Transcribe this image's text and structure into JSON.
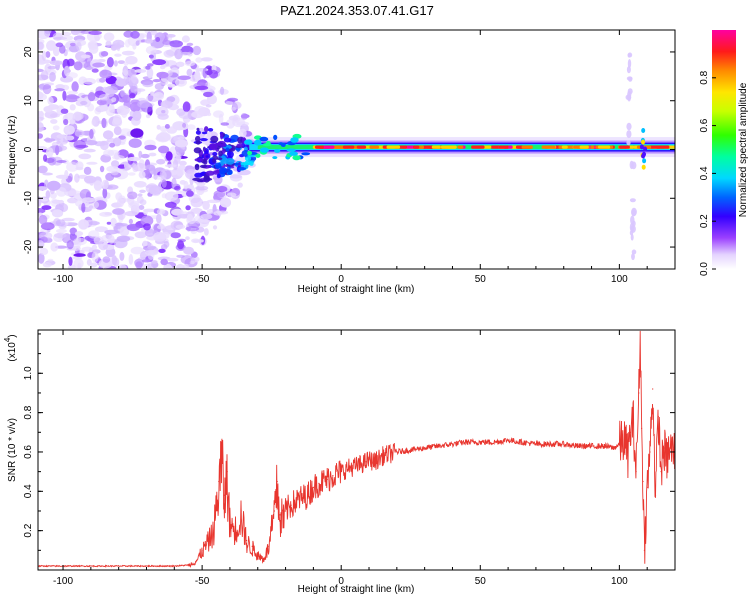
{
  "title": "PAZ1.2024.353.07.41.G17",
  "chart_data": [
    {
      "type": "heatmap",
      "xlabel": "Height of straight line (km)",
      "ylabel": "Frequency (Hz)",
      "xlim": [
        -109,
        120
      ],
      "ylim": [
        -24.5,
        24.5
      ],
      "xticks": [
        -100,
        -50,
        0,
        50,
        100
      ],
      "yticks": [
        -20,
        -10,
        0,
        10,
        20
      ],
      "colorbar": {
        "label": "Normalized spectral amplitude",
        "ticks": [
          0.0,
          0.2,
          0.4,
          0.6,
          0.8
        ],
        "range": [
          0,
          1
        ]
      },
      "ridge": {
        "x_start": -33,
        "x_end": 120,
        "frequency_hz": 0.5,
        "peak_amplitude": 0.9
      },
      "noise_region_x": [
        -109,
        -32
      ]
    },
    {
      "type": "line",
      "xlabel": "Height of straight line (km)",
      "ylabel": "SNR (10 * v/v)",
      "yscale_label": "(x10",
      "yscale_exp": "4",
      "xlim": [
        -109,
        120
      ],
      "ylim": [
        0,
        1.22
      ],
      "xticks": [
        -100,
        -50,
        0,
        50,
        100
      ],
      "yticks": [
        0.2,
        0.4,
        0.6,
        0.8,
        1.0
      ],
      "series": [
        {
          "color": "#e8352e",
          "x": [
            -109,
            -60,
            -55,
            -52,
            -50,
            -48,
            -46,
            -45,
            -44,
            -43,
            -42,
            -41,
            -40,
            -38,
            -36,
            -34,
            -32,
            -30,
            -28,
            -26,
            -25,
            -24,
            -23,
            -22,
            -20,
            -18,
            -15,
            -12,
            -10,
            -8,
            -5,
            -3,
            0,
            3,
            6,
            9,
            10,
            12,
            15,
            20,
            25,
            30,
            35,
            40,
            45,
            50,
            55,
            60,
            65,
            70,
            75,
            80,
            85,
            90,
            95,
            98,
            100,
            102,
            103,
            104,
            105,
            106,
            107,
            107.5,
            108,
            108.5,
            109,
            110,
            111,
            112,
            113,
            114,
            115,
            116,
            117,
            118,
            120
          ],
          "y": [
            0.02,
            0.02,
            0.025,
            0.05,
            0.1,
            0.15,
            0.2,
            0.32,
            0.45,
            0.6,
            0.38,
            0.5,
            0.25,
            0.22,
            0.3,
            0.15,
            0.12,
            0.08,
            0.06,
            0.12,
            0.22,
            0.3,
            0.45,
            0.28,
            0.3,
            0.33,
            0.36,
            0.38,
            0.42,
            0.44,
            0.46,
            0.48,
            0.5,
            0.52,
            0.53,
            0.55,
            0.56,
            0.55,
            0.58,
            0.6,
            0.61,
            0.62,
            0.63,
            0.64,
            0.65,
            0.65,
            0.65,
            0.66,
            0.65,
            0.64,
            0.64,
            0.64,
            0.63,
            0.63,
            0.63,
            0.62,
            0.64,
            0.66,
            0.58,
            0.7,
            0.76,
            0.5,
            0.9,
            1.22,
            0.72,
            0.45,
            0.1,
            0.42,
            0.6,
            0.92,
            0.38,
            0.78,
            0.5,
            0.62,
            0.56,
            0.61,
            0.6
          ]
        }
      ]
    }
  ]
}
